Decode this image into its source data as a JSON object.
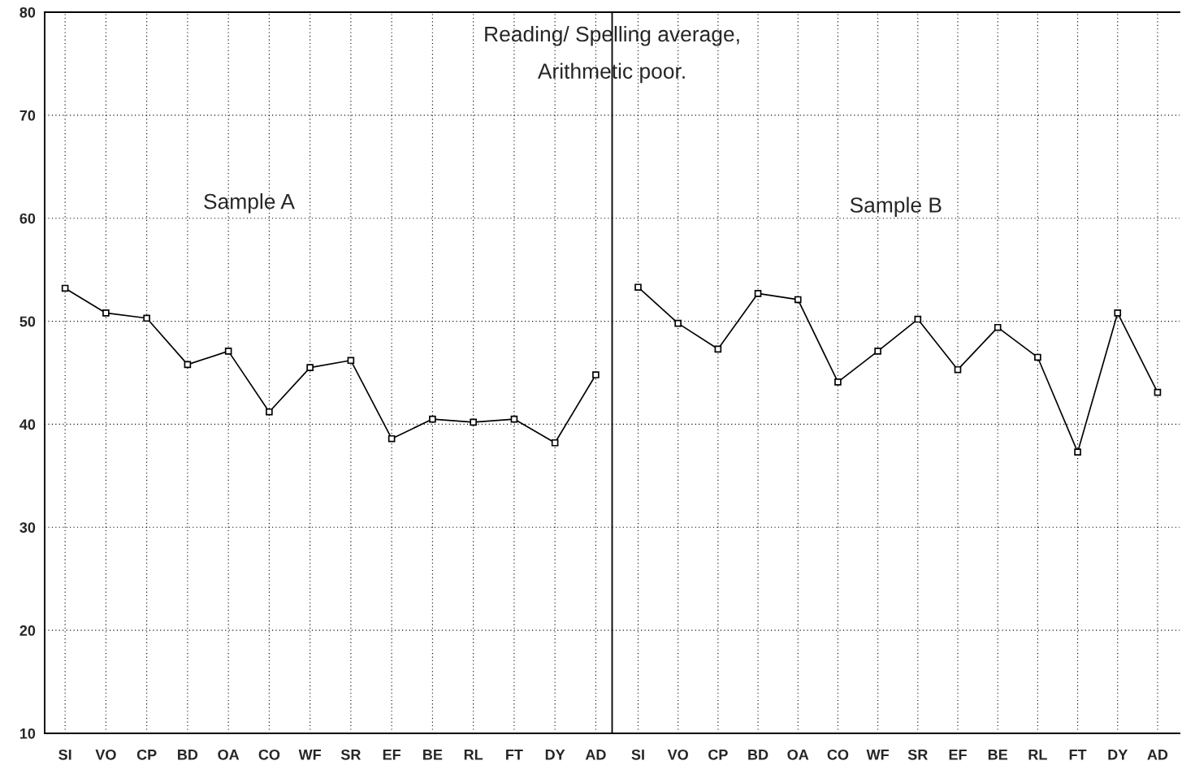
{
  "chart_data": [
    {
      "type": "line",
      "title": "Reading/ Spelling average,\nArithmetic poor.",
      "annotations": [
        "Sample A"
      ],
      "categories": [
        "SI",
        "VO",
        "CP",
        "BD",
        "OA",
        "CO",
        "WF",
        "SR",
        "EF",
        "BE",
        "RL",
        "FT",
        "DY",
        "AD"
      ],
      "series": [
        {
          "color": "#000000",
          "values": [
            53.2,
            50.8,
            50.3,
            45.8,
            47.1,
            41.2,
            45.5,
            46.2,
            38.6,
            40.5,
            40.2,
            40.5,
            38.2,
            44.8
          ]
        }
      ],
      "ylim": [
        10,
        80
      ],
      "yticks": [
        10,
        20,
        30,
        40,
        50,
        60,
        70,
        80
      ],
      "grid": true,
      "marker": "square",
      "line_style": "solid"
    },
    {
      "type": "line",
      "annotations": [
        "Sample B"
      ],
      "categories": [
        "SI",
        "VO",
        "CP",
        "BD",
        "OA",
        "CO",
        "WF",
        "SR",
        "EF",
        "BE",
        "RL",
        "FT",
        "DY",
        "AD"
      ],
      "series": [
        {
          "color": "#000000",
          "values": [
            53.3,
            49.8,
            47.3,
            52.7,
            52.1,
            44.1,
            47.1,
            50.2,
            45.3,
            49.4,
            46.5,
            37.3,
            50.8,
            43.1
          ]
        }
      ],
      "ylim": [
        10,
        80
      ],
      "yticks": [
        10,
        20,
        30,
        40,
        50,
        60,
        70,
        80
      ],
      "grid": true,
      "marker": "square",
      "line_style": "solid",
      "tick_labels": "x"
    }
  ]
}
